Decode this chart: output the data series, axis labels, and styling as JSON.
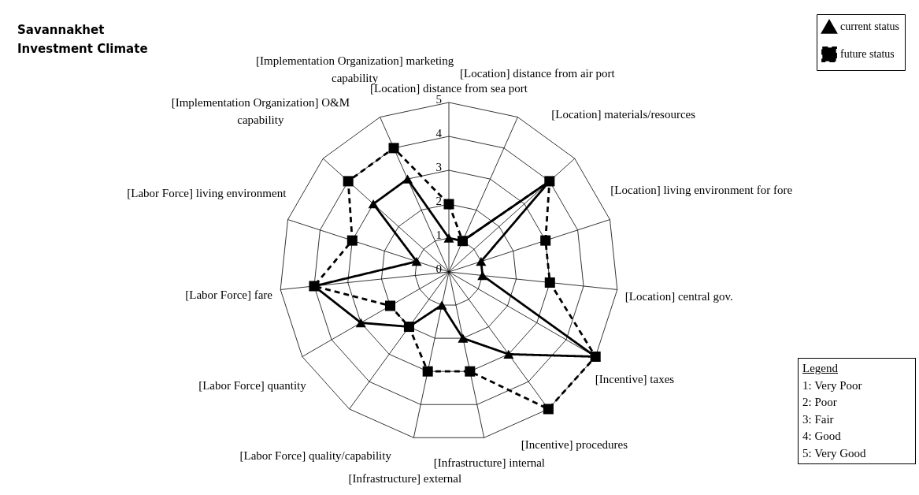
{
  "chart_data": {
    "type": "radar",
    "title": "Savannakhet\nInvestment Climate",
    "categories": [
      "[Location] distance from sea port",
      "[Location] distance from air port",
      "[Location] materials/resources",
      "[Location] living environment for fore",
      "[Location] central gov.",
      "[Incentive] taxes",
      "[Incentive] procedures",
      "[Infrastructure] internal",
      "[Infrastructure] external",
      "[Labor Force] quality/capability",
      "[Labor Force] quantity",
      "[Labor Force] fare",
      "[Labor Force] living environment",
      "[Implementation Organization] O&M capability",
      "[Implementation Organization] marketing capability"
    ],
    "series": [
      {
        "name": "current status",
        "color": "#000000",
        "marker": "triangle",
        "line_style": "solid",
        "values": [
          1,
          1,
          4,
          1,
          1,
          5,
          3,
          2,
          1,
          2,
          3,
          4,
          1,
          3,
          3
        ]
      },
      {
        "name": "future status",
        "color": "#000000",
        "marker": "square",
        "line_style": "dashed",
        "values": [
          2,
          1,
          4,
          3,
          3,
          5,
          5,
          3,
          3,
          2,
          2,
          4,
          3,
          4,
          4
        ]
      }
    ],
    "ylim": [
      0,
      5
    ],
    "yticks": [
      0,
      1,
      2,
      3,
      4,
      5
    ],
    "grid": true,
    "legend": "top right",
    "annotations": [
      "Legend",
      "1: Very Poor",
      "2: Poor",
      "3: Fair",
      "4: Good",
      "5: Very Good"
    ]
  }
}
